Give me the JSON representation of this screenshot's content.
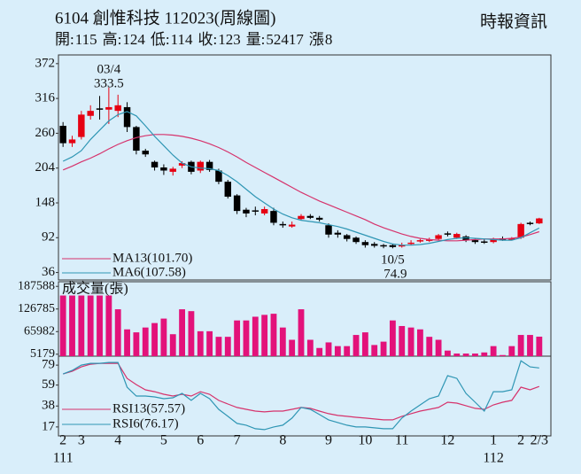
{
  "chart_data": {
    "type": "candlestick",
    "title": "6104  創惟科技 112023(周線圖)",
    "source": "時報資訊",
    "quote": [
      {
        "label": "開:",
        "value": 115
      },
      {
        "label": "高:",
        "value": 124
      },
      {
        "label": "低:",
        "value": 114
      },
      {
        "label": "收:",
        "value": 123
      },
      {
        "label": "量:",
        "value": 52417
      },
      {
        "label": "漲",
        "value": 8
      }
    ],
    "categories": [
      "2",
      null,
      "3",
      null,
      null,
      null,
      "4",
      null,
      null,
      null,
      null,
      "5",
      null,
      null,
      null,
      "6",
      null,
      null,
      null,
      "7",
      null,
      null,
      null,
      null,
      "8",
      null,
      null,
      null,
      null,
      "9",
      null,
      null,
      null,
      "10",
      null,
      null,
      null,
      "11",
      null,
      null,
      null,
      null,
      "12",
      null,
      null,
      null,
      null,
      "1",
      null,
      null,
      "2",
      null,
      "2/3"
    ],
    "year_labels": [
      "111",
      null,
      null,
      null,
      null,
      null,
      null,
      null,
      null,
      null,
      null,
      null,
      null,
      null,
      null,
      null,
      null,
      null,
      null,
      null,
      null,
      null,
      null,
      null,
      null,
      null,
      null,
      null,
      null,
      null,
      null,
      null,
      null,
      null,
      null,
      null,
      null,
      null,
      null,
      null,
      null,
      null,
      null,
      null,
      null,
      null,
      null,
      "112",
      null,
      null,
      null,
      null,
      null
    ],
    "ohlc": {
      "open": [
        272,
        244,
        254,
        288,
        300,
        298,
        296,
        302,
        270,
        232,
        214,
        205,
        198,
        208,
        214,
        200,
        214,
        200,
        182,
        160,
        137,
        136,
        131,
        135,
        114,
        110,
        122,
        127,
        124,
        112,
        100,
        96,
        92,
        85,
        82,
        80,
        80,
        78,
        82,
        86,
        87,
        90,
        99,
        92,
        94,
        88,
        86,
        85,
        91,
        90,
        92,
        116,
        115
      ],
      "high": [
        278,
        256,
        296,
        305,
        320,
        333.5,
        322,
        310,
        272,
        235,
        216,
        210,
        206,
        215,
        216,
        216,
        217,
        203,
        185,
        162,
        140,
        142,
        142,
        140,
        118,
        118,
        130,
        130,
        127,
        115,
        104,
        98,
        94,
        88,
        85,
        82,
        82,
        84,
        88,
        90,
        92,
        98,
        102,
        100,
        96,
        90,
        89,
        92,
        94,
        93,
        116,
        118,
        124
      ],
      "low": [
        238,
        238,
        250,
        282,
        282,
        275,
        286,
        262,
        226,
        222,
        200,
        193,
        192,
        204,
        194,
        196,
        198,
        178,
        155,
        130,
        125,
        128,
        128,
        112,
        108,
        108,
        120,
        122,
        118,
        92,
        92,
        86,
        82,
        76,
        76,
        75,
        74.9,
        76,
        80,
        84,
        85,
        88,
        94,
        90,
        85,
        82,
        82,
        83,
        87,
        88,
        90,
        112,
        114
      ],
      "close": [
        244,
        250,
        290,
        296,
        298,
        302,
        305,
        270,
        232,
        226,
        205,
        200,
        203,
        212,
        198,
        214,
        201,
        182,
        158,
        135,
        131,
        134,
        138,
        116,
        112,
        113,
        127,
        124,
        121,
        97,
        97,
        90,
        85,
        80,
        79,
        78,
        77,
        80,
        84,
        88,
        89,
        96,
        97,
        98,
        88,
        85,
        84,
        90,
        90,
        91,
        114,
        115,
        123
      ]
    },
    "up_color": "#e60012",
    "down_color": "#000000",
    "ylim": [
      24,
      386
    ],
    "yticks": [
      36,
      92,
      148,
      204,
      260,
      316,
      372
    ],
    "ma": [
      {
        "name": "MA13(101.70)",
        "color": "#d6336c",
        "values": [
          201,
          207,
          214,
          220,
          227,
          235,
          242,
          248,
          253,
          256,
          258,
          258,
          257,
          255,
          252,
          248,
          243,
          237,
          230,
          222,
          213,
          205,
          197,
          189,
          181,
          173,
          165,
          158,
          151,
          145,
          139,
          133,
          127,
          121,
          114,
          108,
          103,
          98,
          94,
          91,
          89,
          88,
          87,
          87,
          88,
          89,
          90,
          90,
          90,
          91,
          93,
          97,
          101.7
        ]
      },
      {
        "name": "MA6(107.58)",
        "color": "#2f96b4",
        "values": [
          215,
          222,
          232,
          250,
          265,
          280,
          290,
          295,
          288,
          272,
          255,
          240,
          225,
          212,
          206,
          204,
          203,
          200,
          192,
          182,
          170,
          158,
          148,
          138,
          130,
          124,
          120,
          118,
          116,
          113,
          110,
          106,
          101,
          96,
          91,
          86,
          82,
          80,
          80,
          81,
          83,
          86,
          89,
          91,
          92,
          91,
          90,
          89,
          88,
          88,
          92,
          100,
          107.58
        ]
      }
    ],
    "annotations": [
      {
        "date": "03/4",
        "value": 333.5
      },
      {
        "date": "10/5",
        "value": 74.9
      }
    ],
    "volume": {
      "title": "成交量(張)",
      "color": "#e3127a",
      "ylim": [
        0,
        200000
      ],
      "yticks": [
        5179,
        65982,
        126785,
        187588
      ],
      "values": [
        163000,
        163000,
        163000,
        163000,
        163000,
        163000,
        126000,
        72000,
        64000,
        77000,
        89000,
        101000,
        59000,
        126000,
        121000,
        67000,
        67000,
        52000,
        52000,
        96000,
        96000,
        106000,
        111000,
        114000,
        77000,
        44000,
        126000,
        44000,
        22000,
        37000,
        27000,
        27000,
        57000,
        64000,
        30000,
        39000,
        96000,
        81000,
        77000,
        72000,
        52000,
        44000,
        15000,
        7000,
        7000,
        7000,
        10000,
        27000,
        3000,
        27000,
        57000,
        57000,
        52417
      ]
    },
    "rsi": {
      "ylim": [
        8,
        88
      ],
      "yticks": [
        17,
        38,
        59,
        79
      ],
      "series": [
        {
          "name": "RSI13(57.57)",
          "color": "#d6336c",
          "values": [
            70.1,
            72.8,
            77.2,
            79.9,
            80.8,
            80.8,
            80.8,
            65.7,
            59.5,
            54.2,
            52.4,
            49.8,
            48,
            49.8,
            48,
            52.4,
            49.8,
            43.6,
            40,
            36.5,
            34.7,
            32.9,
            32.1,
            32.9,
            32.9,
            34.7,
            36.5,
            35.6,
            32.9,
            30.3,
            28.5,
            27.6,
            26.7,
            25.9,
            25,
            24.1,
            24.1,
            27.6,
            30.3,
            32.9,
            34.7,
            36.5,
            41.8,
            40.9,
            38.3,
            35.6,
            34.7,
            39.1,
            41.8,
            43.6,
            56.9,
            54.2,
            57.57
          ]
        },
        {
          "name": "RSI6(76.17)",
          "color": "#2f96b4",
          "values": [
            70.1,
            73.7,
            79,
            80.8,
            80.8,
            81.7,
            81.7,
            56.9,
            48,
            48,
            47.1,
            45.3,
            46.2,
            50.7,
            43.6,
            50.7,
            45.3,
            34.7,
            27.6,
            20.5,
            18.8,
            15.2,
            14.3,
            17,
            18.8,
            25.9,
            36.5,
            34.7,
            29.4,
            24.1,
            21.4,
            18.8,
            17,
            17,
            16.1,
            15.2,
            15.2,
            25.9,
            32.9,
            39.1,
            45.3,
            48,
            68.4,
            65.7,
            50.7,
            41.8,
            32.9,
            52.4,
            52.4,
            54.2,
            83.4,
            77.2,
            76.17
          ]
        }
      ]
    }
  }
}
